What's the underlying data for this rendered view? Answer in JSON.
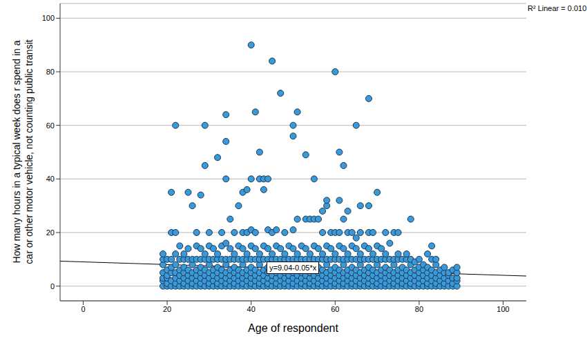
{
  "chart_data": {
    "type": "scatter",
    "xlabel": "Age of respondent",
    "ylabel": "How many hours in a typical week does r spend in a\ncar or other motor vehicle, not counting public transit",
    "xlim": [
      -5.5,
      105.5
    ],
    "xticks": [
      0,
      20,
      40,
      60,
      80,
      100
    ],
    "ylim": [
      -5.5,
      105.5
    ],
    "yticks": [
      0,
      20,
      40,
      60,
      80,
      100
    ],
    "grid": true,
    "color": "#3a9ad9",
    "marker": "circle",
    "fit": {
      "intercept": 9.04,
      "slope": -0.05,
      "label": "y=9.04-0.05*x",
      "r2": 0.01,
      "r2_label": "R² Linear = 0.010"
    },
    "x": [
      19,
      19,
      19,
      19,
      19,
      19,
      19,
      20,
      20,
      20,
      20,
      20,
      20,
      21,
      21,
      21,
      21,
      21,
      21,
      21,
      22,
      22,
      22,
      22,
      22,
      22,
      22,
      22,
      23,
      23,
      23,
      23,
      23,
      23,
      24,
      24,
      24,
      24,
      24,
      24,
      24,
      25,
      25,
      25,
      25,
      25,
      25,
      25,
      26,
      26,
      26,
      26,
      26,
      26,
      26,
      27,
      27,
      27,
      27,
      27,
      27,
      27,
      28,
      28,
      28,
      28,
      28,
      28,
      28,
      28,
      29,
      29,
      29,
      29,
      29,
      29,
      29,
      29,
      30,
      30,
      30,
      30,
      30,
      30,
      30,
      30,
      31,
      31,
      31,
      31,
      31,
      31,
      32,
      32,
      32,
      32,
      32,
      32,
      32,
      32,
      33,
      33,
      33,
      33,
      33,
      33,
      33,
      34,
      34,
      34,
      34,
      34,
      34,
      34,
      34,
      34,
      34,
      35,
      35,
      35,
      35,
      35,
      35,
      35,
      36,
      36,
      36,
      36,
      36,
      36,
      36,
      36,
      37,
      37,
      37,
      37,
      37,
      37,
      37,
      38,
      38,
      38,
      38,
      38,
      38,
      38,
      38,
      38,
      39,
      39,
      39,
      39,
      39,
      39,
      39,
      39,
      40,
      40,
      40,
      40,
      40,
      40,
      40,
      40,
      40,
      40,
      41,
      41,
      41,
      41,
      41,
      41,
      41,
      41,
      42,
      42,
      42,
      42,
      42,
      42,
      42,
      42,
      42,
      43,
      43,
      43,
      43,
      43,
      43,
      43,
      43,
      44,
      44,
      44,
      44,
      44,
      44,
      44,
      44,
      44,
      45,
      45,
      45,
      45,
      45,
      45,
      45,
      45,
      46,
      46,
      46,
      46,
      46,
      46,
      46,
      46,
      47,
      47,
      47,
      47,
      47,
      47,
      47,
      48,
      48,
      48,
      48,
      48,
      48,
      48,
      48,
      49,
      49,
      49,
      49,
      49,
      49,
      50,
      50,
      50,
      50,
      50,
      50,
      50,
      50,
      50,
      50,
      51,
      51,
      51,
      51,
      51,
      51,
      51,
      51,
      52,
      52,
      52,
      52,
      52,
      52,
      52,
      53,
      53,
      53,
      53,
      53,
      53,
      53,
      53,
      54,
      54,
      54,
      54,
      54,
      54,
      54,
      54,
      55,
      55,
      55,
      55,
      55,
      55,
      55,
      55,
      56,
      56,
      56,
      56,
      56,
      56,
      56,
      56,
      57,
      57,
      57,
      57,
      57,
      57,
      57,
      57,
      58,
      58,
      58,
      58,
      58,
      58,
      58,
      58,
      58,
      59,
      59,
      59,
      59,
      59,
      59,
      59,
      60,
      60,
      60,
      60,
      60,
      60,
      60,
      60,
      60,
      61,
      61,
      61,
      61,
      61,
      61,
      61,
      61,
      61,
      62,
      62,
      62,
      62,
      62,
      62,
      62,
      62,
      62,
      63,
      63,
      63,
      63,
      63,
      63,
      63,
      63,
      64,
      64,
      64,
      64,
      64,
      64,
      64,
      64,
      65,
      65,
      65,
      65,
      65,
      65,
      65,
      65,
      66,
      66,
      66,
      66,
      66,
      66,
      66,
      66,
      66,
      67,
      67,
      67,
      67,
      67,
      67,
      68,
      68,
      68,
      68,
      68,
      68,
      68,
      68,
      68,
      68,
      69,
      69,
      69,
      69,
      69,
      69,
      69,
      70,
      70,
      70,
      70,
      70,
      70,
      70,
      70,
      71,
      71,
      71,
      71,
      71,
      71,
      72,
      72,
      72,
      72,
      72,
      72,
      72,
      72,
      73,
      73,
      73,
      73,
      73,
      73,
      74,
      74,
      74,
      74,
      74,
      74,
      74,
      75,
      75,
      75,
      75,
      75,
      75,
      75,
      76,
      76,
      76,
      76,
      76,
      76,
      77,
      77,
      77,
      77,
      77,
      77,
      78,
      78,
      78,
      78,
      78,
      78,
      78,
      79,
      79,
      79,
      79,
      79,
      80,
      80,
      80,
      80,
      80,
      80,
      81,
      81,
      81,
      81,
      81,
      82,
      82,
      82,
      82,
      82,
      82,
      83,
      83,
      83,
      83,
      83,
      83,
      84,
      84,
      84,
      84,
      84,
      84,
      85,
      85,
      85,
      85,
      86,
      86,
      86,
      86,
      86,
      87,
      87,
      87,
      87,
      88,
      88,
      88,
      88,
      89,
      89,
      89,
      89,
      89
    ],
    "values": [
      0,
      2,
      3,
      5,
      8,
      10,
      12,
      0,
      1,
      3,
      4,
      6,
      10,
      0,
      2,
      5,
      7,
      10,
      20,
      35,
      0,
      1,
      3,
      5,
      8,
      12,
      20,
      60,
      0,
      2,
      4,
      6,
      10,
      15,
      0,
      1,
      3,
      5,
      7,
      10,
      12,
      0,
      2,
      4,
      6,
      10,
      14,
      35,
      0,
      1,
      3,
      5,
      8,
      10,
      30,
      0,
      2,
      4,
      6,
      10,
      15,
      20,
      0,
      1,
      3,
      5,
      7,
      10,
      14,
      34,
      0,
      2,
      4,
      6,
      10,
      12,
      45,
      60,
      0,
      1,
      3,
      5,
      8,
      10,
      15,
      20,
      0,
      2,
      4,
      6,
      10,
      14,
      0,
      1,
      3,
      5,
      7,
      10,
      12,
      48,
      0,
      2,
      4,
      6,
      10,
      15,
      20,
      0,
      1,
      3,
      5,
      8,
      10,
      16,
      40,
      54,
      64,
      0,
      2,
      4,
      6,
      10,
      14,
      25,
      0,
      1,
      3,
      5,
      7,
      10,
      12,
      20,
      0,
      2,
      4,
      6,
      10,
      15,
      30,
      0,
      1,
      3,
      5,
      8,
      10,
      14,
      20,
      35,
      0,
      2,
      4,
      6,
      10,
      12,
      20,
      36,
      0,
      1,
      3,
      5,
      7,
      10,
      15,
      21,
      40,
      90,
      0,
      2,
      4,
      6,
      10,
      14,
      20,
      65,
      0,
      1,
      3,
      5,
      8,
      10,
      12,
      40,
      50,
      0,
      2,
      4,
      6,
      10,
      15,
      36,
      40,
      0,
      1,
      3,
      5,
      7,
      10,
      14,
      21,
      40,
      0,
      2,
      4,
      6,
      10,
      12,
      20,
      84,
      0,
      1,
      3,
      5,
      8,
      10,
      15,
      21,
      0,
      2,
      4,
      6,
      10,
      14,
      72,
      0,
      1,
      3,
      5,
      7,
      10,
      12,
      20,
      0,
      2,
      4,
      6,
      10,
      15,
      0,
      1,
      3,
      5,
      8,
      10,
      14,
      21,
      56,
      60,
      0,
      2,
      4,
      6,
      10,
      12,
      25,
      65,
      0,
      1,
      3,
      5,
      7,
      10,
      15,
      0,
      2,
      4,
      6,
      10,
      14,
      25,
      49,
      0,
      1,
      3,
      5,
      8,
      10,
      12,
      25,
      0,
      2,
      4,
      6,
      10,
      15,
      25,
      40,
      0,
      1,
      3,
      5,
      7,
      10,
      14,
      25,
      0,
      2,
      4,
      6,
      10,
      12,
      20,
      28,
      0,
      1,
      3,
      5,
      8,
      10,
      15,
      30,
      32,
      0,
      2,
      4,
      6,
      10,
      14,
      20,
      0,
      1,
      3,
      5,
      7,
      10,
      12,
      20,
      80,
      0,
      2,
      4,
      6,
      10,
      15,
      20,
      32,
      50,
      0,
      1,
      3,
      5,
      8,
      10,
      14,
      25,
      45,
      0,
      2,
      4,
      6,
      10,
      12,
      20,
      28,
      0,
      1,
      3,
      5,
      7,
      10,
      15,
      20,
      0,
      2,
      4,
      6,
      10,
      14,
      18,
      60,
      0,
      1,
      3,
      5,
      8,
      10,
      12,
      20,
      30,
      0,
      2,
      4,
      6,
      10,
      15,
      0,
      1,
      3,
      5,
      7,
      10,
      14,
      20,
      30,
      70,
      0,
      2,
      4,
      6,
      10,
      12,
      20,
      0,
      1,
      3,
      5,
      8,
      10,
      15,
      35,
      0,
      2,
      4,
      6,
      10,
      14,
      0,
      1,
      3,
      5,
      7,
      10,
      12,
      20,
      0,
      2,
      4,
      6,
      10,
      16,
      0,
      1,
      3,
      5,
      8,
      10,
      20,
      0,
      2,
      4,
      6,
      10,
      12,
      20,
      0,
      1,
      3,
      5,
      7,
      10,
      0,
      2,
      4,
      6,
      10,
      12,
      0,
      1,
      3,
      5,
      8,
      10,
      25,
      0,
      2,
      4,
      6,
      9,
      0,
      1,
      3,
      5,
      7,
      10,
      0,
      2,
      4,
      6,
      8,
      0,
      1,
      3,
      5,
      7,
      12,
      0,
      2,
      4,
      6,
      10,
      15,
      0,
      1,
      3,
      5,
      8,
      10,
      0,
      2,
      4,
      6,
      0,
      1,
      3,
      5,
      7,
      0,
      2,
      4,
      5,
      0,
      1,
      3,
      6,
      0,
      2,
      3,
      5,
      7
    ]
  }
}
